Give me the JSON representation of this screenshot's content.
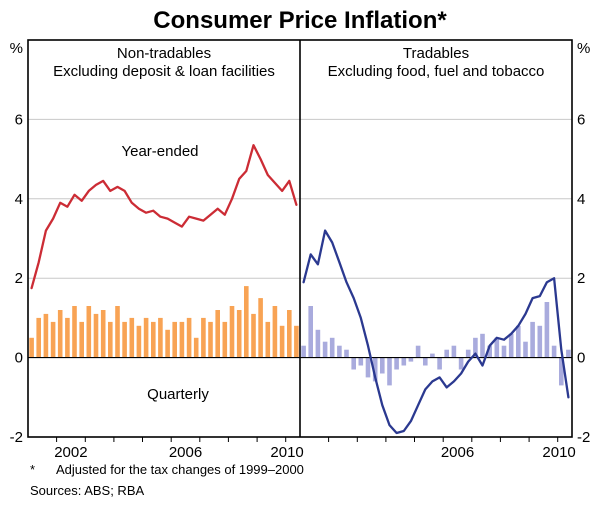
{
  "title": "Consumer Price Inflation*",
  "axes": {
    "unit": "%",
    "ylim": [
      -2,
      8
    ],
    "yticks": [
      6,
      4,
      2,
      0,
      -2
    ],
    "x_range": [
      2001,
      2010.5
    ],
    "x_tick_years": [
      2002,
      2003,
      2004,
      2005,
      2006,
      2007,
      2008,
      2009,
      2010
    ]
  },
  "colors": {
    "gridline": "#c8c8c8",
    "axis": "#000000"
  },
  "footnote": {
    "marker": "*",
    "text": "Adjusted for the tax changes of 1999–2000"
  },
  "sources": "Sources: ABS; RBA",
  "chart_data": [
    {
      "type": "bar+line",
      "panel": "Non-tradables",
      "subtitle": "Excluding deposit & loan facilities",
      "x_start": 2001.0,
      "x_step": 0.25,
      "x_labels": [
        {
          "text": "2002",
          "year": 2002.5
        },
        {
          "text": "2006",
          "year": 2006.5
        },
        {
          "text": "2010",
          "year": 2010.05
        }
      ],
      "series": [
        {
          "name": "Year-ended",
          "type": "line",
          "color": "#cc2c35",
          "values": [
            1.75,
            2.4,
            3.2,
            3.5,
            3.9,
            3.8,
            4.1,
            3.95,
            4.2,
            4.35,
            4.45,
            4.2,
            4.3,
            4.2,
            3.9,
            3.75,
            3.65,
            3.7,
            3.55,
            3.5,
            3.4,
            3.3,
            3.55,
            3.5,
            3.45,
            3.6,
            3.75,
            3.6,
            4.0,
            4.5,
            4.7,
            5.35,
            5.0,
            4.6,
            4.4,
            4.2,
            4.45,
            3.85
          ]
        },
        {
          "name": "Quarterly",
          "type": "bar",
          "color": "#f8a354",
          "values": [
            0.5,
            1.0,
            1.1,
            0.9,
            1.2,
            1.0,
            1.3,
            0.9,
            1.3,
            1.1,
            1.2,
            0.9,
            1.3,
            0.9,
            1.0,
            0.8,
            1.0,
            0.9,
            1.0,
            0.7,
            0.9,
            0.9,
            1.0,
            0.5,
            1.0,
            0.9,
            1.2,
            0.9,
            1.3,
            1.2,
            1.8,
            1.1,
            1.5,
            0.9,
            1.3,
            0.8,
            1.2,
            0.8
          ]
        }
      ]
    },
    {
      "type": "bar+line",
      "panel": "Tradables",
      "subtitle": "Excluding food, fuel and tobacco",
      "x_start": 2001.0,
      "x_step": 0.25,
      "x_labels": [
        {
          "text": "2006",
          "year": 2006.5
        },
        {
          "text": "2010",
          "year": 2010.05
        }
      ],
      "series": [
        {
          "name": "Year-ended",
          "type": "line",
          "color": "#2b3990",
          "values": [
            1.9,
            2.6,
            2.35,
            3.2,
            2.9,
            2.4,
            1.9,
            1.5,
            1.0,
            0.3,
            -0.5,
            -1.2,
            -1.7,
            -1.9,
            -1.85,
            -1.6,
            -1.2,
            -0.8,
            -0.6,
            -0.5,
            -0.75,
            -0.6,
            -0.4,
            -0.1,
            0.1,
            -0.2,
            0.3,
            0.5,
            0.45,
            0.6,
            0.8,
            1.1,
            1.5,
            1.55,
            1.9,
            2.0,
            0.2,
            -1.0
          ]
        },
        {
          "name": "Quarterly",
          "type": "bar",
          "color": "#a9abdd",
          "values": [
            0.3,
            1.3,
            0.7,
            0.4,
            0.5,
            0.3,
            0.2,
            -0.3,
            -0.2,
            -0.5,
            -0.6,
            -0.4,
            -0.7,
            -0.3,
            -0.2,
            -0.1,
            0.3,
            -0.2,
            0.1,
            -0.3,
            0.2,
            0.3,
            -0.3,
            0.2,
            0.5,
            0.6,
            0.3,
            0.5,
            0.3,
            0.6,
            0.8,
            0.4,
            0.9,
            0.8,
            1.4,
            0.3,
            -0.7,
            0.2
          ]
        }
      ]
    }
  ]
}
